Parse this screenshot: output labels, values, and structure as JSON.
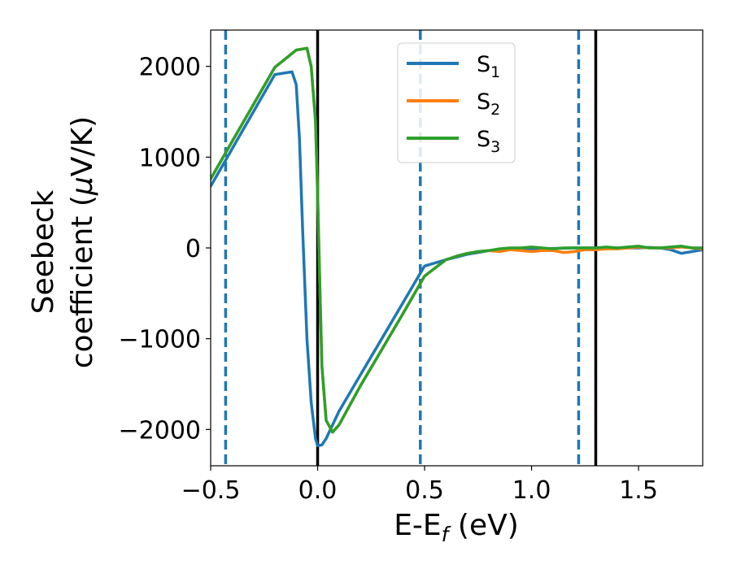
{
  "chart_data": {
    "type": "line",
    "xlabel_main": "E-E",
    "xlabel_sub": "f",
    "xlabel_unit": " (eV)",
    "ylabel_line1": "Seebeck",
    "ylabel_line2_a": "coefficient  (",
    "ylabel_line2_mu": "μ",
    "ylabel_line2_b": "V/K)",
    "xlim": [
      -0.5,
      1.8
    ],
    "ylim": [
      -2400,
      2400
    ],
    "xticks": [
      -0.5,
      0.0,
      0.5,
      1.0,
      1.5
    ],
    "xtick_labels": [
      "−0.5",
      "0.0",
      "0.5",
      "1.0",
      "1.5"
    ],
    "yticks": [
      2000,
      1000,
      0,
      -1000,
      -2000
    ],
    "ytick_labels": [
      "2000",
      "1000",
      "0",
      "−1000",
      "−2000"
    ],
    "legend_position": "upper-center",
    "series": [
      {
        "name": "S",
        "sub": "1",
        "color": "#1f77b4",
        "x": [
          -0.5,
          -0.4,
          -0.3,
          -0.2,
          -0.12,
          -0.1,
          -0.085,
          -0.07,
          -0.05,
          -0.03,
          -0.01,
          0.0,
          0.02,
          0.04,
          0.1,
          0.2,
          0.3,
          0.4,
          0.5,
          0.6,
          0.65,
          0.7,
          0.75,
          0.8,
          0.9,
          1.0,
          1.1,
          1.2,
          1.3,
          1.4,
          1.5,
          1.55,
          1.6,
          1.65,
          1.7,
          1.75,
          1.8
        ],
        "y": [
          680,
          1090,
          1500,
          1910,
          1940,
          1800,
          1200,
          200,
          -1000,
          -1700,
          -2100,
          -2180,
          -2170,
          -2100,
          -1800,
          -1400,
          -1000,
          -600,
          -200,
          -130,
          -100,
          -70,
          -50,
          -30,
          -20,
          -10,
          -5,
          0,
          0,
          0,
          0,
          5,
          0,
          -20,
          -60,
          -40,
          -20
        ]
      },
      {
        "name": "S",
        "sub": "2",
        "color": "#ff7f0e",
        "x": [
          -0.5,
          -0.4,
          -0.3,
          -0.2,
          -0.1,
          -0.05,
          -0.03,
          -0.01,
          0.0,
          0.01,
          0.02,
          0.04,
          0.07,
          0.1,
          0.2,
          0.3,
          0.4,
          0.5,
          0.6,
          0.65,
          0.7,
          0.75,
          0.8,
          0.85,
          0.9,
          0.95,
          1.0,
          1.05,
          1.1,
          1.15,
          1.2,
          1.25,
          1.3,
          1.35,
          1.4,
          1.45,
          1.5,
          1.55,
          1.6,
          1.65,
          1.7,
          1.75,
          1.8
        ],
        "y": [
          760,
          1170,
          1580,
          1990,
          2180,
          2200,
          2000,
          1400,
          600,
          -400,
          -1300,
          -1900,
          -2030,
          -1950,
          -1520,
          -1120,
          -720,
          -310,
          -130,
          -90,
          -60,
          -40,
          -30,
          -40,
          -20,
          -30,
          -40,
          -30,
          -30,
          -50,
          -40,
          -20,
          -20,
          -10,
          -10,
          0,
          10,
          0,
          0,
          0,
          10,
          0,
          -10
        ]
      },
      {
        "name": "S",
        "sub": "3",
        "color": "#2ca02c",
        "x": [
          -0.5,
          -0.4,
          -0.3,
          -0.2,
          -0.1,
          -0.05,
          -0.03,
          -0.01,
          0.0,
          0.01,
          0.02,
          0.04,
          0.07,
          0.1,
          0.2,
          0.3,
          0.4,
          0.5,
          0.6,
          0.65,
          0.7,
          0.75,
          0.8,
          0.85,
          0.9,
          0.95,
          1.0,
          1.05,
          1.1,
          1.15,
          1.2,
          1.25,
          1.3,
          1.35,
          1.4,
          1.45,
          1.5,
          1.55,
          1.6,
          1.65,
          1.7,
          1.75,
          1.8
        ],
        "y": [
          760,
          1170,
          1580,
          1990,
          2180,
          2200,
          2000,
          1400,
          600,
          -400,
          -1300,
          -1900,
          -2030,
          -1950,
          -1520,
          -1120,
          -720,
          -310,
          -130,
          -90,
          -60,
          -40,
          -30,
          -10,
          0,
          0,
          10,
          0,
          -10,
          0,
          0,
          0,
          0,
          10,
          0,
          10,
          20,
          0,
          0,
          10,
          20,
          0,
          0
        ]
      }
    ],
    "vlines_solid": [
      0.0,
      1.3
    ],
    "vlines_dashed": [
      -0.43,
      0.48,
      1.22
    ],
    "vline_solid_color": "#000000",
    "vline_dashed_color": "#1f77b4"
  }
}
